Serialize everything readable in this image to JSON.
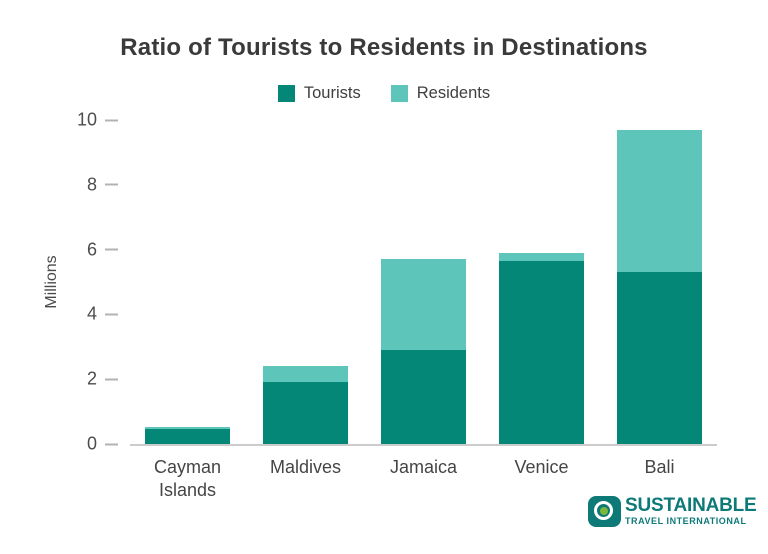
{
  "chart_data": {
    "type": "bar",
    "stacked": true,
    "title": "Ratio of Tourists to Residents in Destinations",
    "ylabel": "Millions",
    "xlabel": "",
    "ylim": [
      0,
      10
    ],
    "yticks": [
      0,
      2,
      4,
      6,
      8,
      10
    ],
    "grid": false,
    "legend_position": "top-center",
    "categories": [
      "Cayman Islands",
      "Maldives",
      "Jamaica",
      "Venice",
      "Bali"
    ],
    "series": [
      {
        "name": "Tourists",
        "color": "#048777",
        "values": [
          0.45,
          1.9,
          2.9,
          5.65,
          5.3
        ]
      },
      {
        "name": "Residents",
        "color": "#5ec5bb",
        "values": [
          0.07,
          0.5,
          2.8,
          0.25,
          4.4
        ]
      }
    ],
    "totals": [
      0.52,
      2.4,
      5.7,
      5.9,
      9.7
    ]
  },
  "colors": {
    "title_text": "#3a3a3a",
    "axis_text": "#4d4d4d",
    "tick_mark": "#b3b3b3",
    "baseline": "#cccccc",
    "background": "#ffffff"
  },
  "logo": {
    "line1": "SUSTAINABLE",
    "line2": "TRAVEL INTERNATIONAL",
    "text_color": "#0e7a78",
    "icon_bg_color": "#0e7a78",
    "icon_dot_color": "#7cb63f"
  }
}
